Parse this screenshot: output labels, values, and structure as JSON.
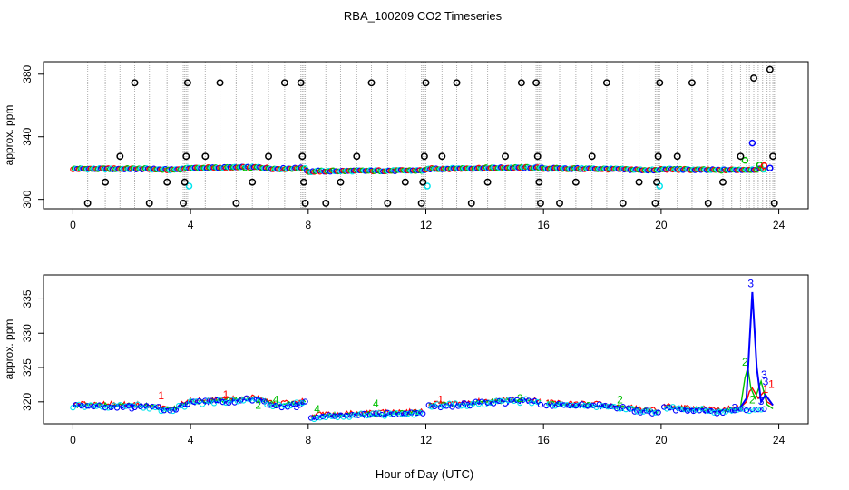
{
  "title": "RBA_100209  CO2 Timeseries",
  "xlabel": "Hour of Day (UTC)",
  "colors": {
    "outlier": "#000000",
    "ch1": "#ff0000",
    "ch2": "#00c000",
    "ch3": "#0000ff",
    "ch4": "#00e5ee",
    "vline": "#b0b0b0"
  },
  "chart_data": [
    {
      "type": "scatter",
      "ylabel": "approx. ppm",
      "xlim": [
        -1,
        25
      ],
      "ylim": [
        294,
        388
      ],
      "xticks": [
        0,
        4,
        8,
        12,
        16,
        20,
        24
      ],
      "yticks": [
        300,
        340,
        380
      ],
      "baseline": [
        [
          0,
          319.5
        ],
        [
          2.5,
          319.5
        ],
        [
          3.3,
          318.8
        ],
        [
          4,
          320
        ],
        [
          6.3,
          320.5
        ],
        [
          6.9,
          319.5
        ],
        [
          7.9,
          320
        ],
        [
          8.0,
          317.5
        ],
        [
          8.3,
          318
        ],
        [
          12,
          318.5
        ],
        [
          12.1,
          319.5
        ],
        [
          15.4,
          320.3
        ],
        [
          15.9,
          320
        ],
        [
          16.0,
          319.8
        ],
        [
          18,
          319.5
        ],
        [
          19.9,
          318.6
        ],
        [
          20.0,
          319.3
        ],
        [
          22,
          318.7
        ],
        [
          22.8,
          319
        ],
        [
          23.8,
          319.5
        ]
      ],
      "outliers": [
        [
          0.5,
          297.5
        ],
        [
          1.1,
          311
        ],
        [
          1.6,
          327.5
        ],
        [
          2.1,
          374.5
        ],
        [
          2.6,
          297.5
        ],
        [
          3.2,
          311
        ],
        [
          3.75,
          297.5
        ],
        [
          3.8,
          311
        ],
        [
          3.85,
          327.5
        ],
        [
          3.9,
          374.5
        ],
        [
          4.5,
          327.5
        ],
        [
          5.0,
          374.5
        ],
        [
          5.55,
          297.5
        ],
        [
          6.1,
          311
        ],
        [
          6.65,
          327.5
        ],
        [
          7.2,
          374.5
        ],
        [
          7.75,
          374.5
        ],
        [
          7.8,
          327.5
        ],
        [
          7.85,
          311
        ],
        [
          7.9,
          297.5
        ],
        [
          8.6,
          297.5
        ],
        [
          9.1,
          311
        ],
        [
          9.65,
          327.5
        ],
        [
          10.15,
          374.5
        ],
        [
          10.7,
          297.5
        ],
        [
          11.3,
          311
        ],
        [
          11.85,
          297.5
        ],
        [
          11.9,
          311
        ],
        [
          11.95,
          327.5
        ],
        [
          12.0,
          374.5
        ],
        [
          12.55,
          327.5
        ],
        [
          13.05,
          374.5
        ],
        [
          13.55,
          297.5
        ],
        [
          14.1,
          311
        ],
        [
          14.7,
          327.5
        ],
        [
          15.25,
          374.5
        ],
        [
          15.75,
          374.5
        ],
        [
          15.8,
          327.5
        ],
        [
          15.85,
          311
        ],
        [
          15.9,
          297.5
        ],
        [
          16.55,
          297.5
        ],
        [
          17.1,
          311
        ],
        [
          17.65,
          327.5
        ],
        [
          18.15,
          374.5
        ],
        [
          18.7,
          297.5
        ],
        [
          19.25,
          311
        ],
        [
          19.8,
          297.5
        ],
        [
          19.85,
          311
        ],
        [
          19.9,
          327.5
        ],
        [
          19.95,
          374.5
        ],
        [
          20.55,
          327.5
        ],
        [
          21.05,
          374.5
        ],
        [
          21.6,
          297.5
        ],
        [
          22.1,
          311
        ],
        [
          22.7,
          327.5
        ],
        [
          23.15,
          377.5
        ],
        [
          23.7,
          383
        ],
        [
          23.8,
          327.5
        ],
        [
          23.85,
          297.5
        ]
      ],
      "cyan_points": [
        [
          3.95,
          308.5
        ],
        [
          12.05,
          308.5
        ],
        [
          19.95,
          308.5
        ]
      ],
      "spike_points": [
        [
          22.85,
          325
        ],
        [
          23.1,
          336
        ],
        [
          23.35,
          322
        ],
        [
          23.5,
          321.5
        ],
        [
          23.7,
          320
        ]
      ]
    },
    {
      "type": "line",
      "ylabel": "approx. ppm",
      "xlim": [
        -1,
        25
      ],
      "ylim": [
        316.8,
        338.5
      ],
      "xticks": [
        0,
        4,
        8,
        12,
        16,
        20,
        24
      ],
      "yticks": [
        320,
        325,
        330,
        335
      ],
      "baseline": [
        [
          0,
          319.5
        ],
        [
          2.5,
          319.5
        ],
        [
          3.3,
          318.8
        ],
        [
          4,
          320
        ],
        [
          6.3,
          320.5
        ],
        [
          6.9,
          319.5
        ],
        [
          7.9,
          320
        ],
        [
          8.0,
          317.5
        ],
        [
          8.3,
          318
        ],
        [
          12,
          318.5
        ],
        [
          12.1,
          319.5
        ],
        [
          15.4,
          320.3
        ],
        [
          15.9,
          320
        ],
        [
          16.0,
          319.8
        ],
        [
          18,
          319.5
        ],
        [
          19.9,
          318.6
        ],
        [
          20.0,
          319.3
        ],
        [
          22,
          318.7
        ],
        [
          22.8,
          319
        ],
        [
          23.8,
          319.5
        ]
      ],
      "gaps": [
        [
          8.0,
          8.05
        ],
        [
          12.0,
          12.05
        ],
        [
          16.0,
          16.05
        ],
        [
          20.0,
          20.05
        ]
      ],
      "spike_series": [
        {
          "label": "1",
          "points": [
            [
              22.7,
              319.2
            ],
            [
              22.9,
              320
            ],
            [
              23.0,
              321.5
            ],
            [
              23.1,
              322
            ],
            [
              23.3,
              320.5
            ],
            [
              23.5,
              321.5
            ],
            [
              23.6,
              320
            ],
            [
              23.8,
              319.5
            ]
          ]
        },
        {
          "label": "2",
          "points": [
            [
              22.7,
              319.2
            ],
            [
              22.85,
              323.5
            ],
            [
              22.95,
              325
            ],
            [
              23.05,
              322
            ],
            [
              23.2,
              320.5
            ],
            [
              23.4,
              323
            ],
            [
              23.6,
              319.6
            ],
            [
              23.8,
              319
            ]
          ]
        },
        {
          "label": "3",
          "points": [
            [
              22.7,
              319.2
            ],
            [
              22.9,
              320.5
            ],
            [
              23.1,
              336
            ],
            [
              23.25,
              325
            ],
            [
              23.4,
              320
            ],
            [
              23.55,
              321
            ],
            [
              23.8,
              319.5
            ]
          ]
        }
      ],
      "annotations": [
        {
          "text": "3",
          "x": 23.05,
          "y": 336.7,
          "color": "#0000ff"
        },
        {
          "text": "2",
          "x": 22.85,
          "y": 325.3,
          "color": "#00c000"
        },
        {
          "text": "3",
          "x": 23.5,
          "y": 323.4,
          "color": "#0000ff"
        },
        {
          "text": "3",
          "x": 23.55,
          "y": 322.4,
          "color": "#0000ff"
        },
        {
          "text": "1",
          "x": 23.75,
          "y": 322.0,
          "color": "#ff0000"
        },
        {
          "text": "1",
          "x": 23.55,
          "y": 321.3,
          "color": "#ff0000"
        },
        {
          "text": "1",
          "x": 3.0,
          "y": 320.4,
          "color": "#ff0000"
        },
        {
          "text": "3",
          "x": 2.0,
          "y": 318.6,
          "color": "#0000ff"
        },
        {
          "text": "2",
          "x": 6.3,
          "y": 319.0,
          "color": "#00c000"
        },
        {
          "text": "4",
          "x": 6.9,
          "y": 319.8,
          "color": "#00c000"
        },
        {
          "text": "3",
          "x": 7.6,
          "y": 318.8,
          "color": "#0000ff"
        },
        {
          "text": "4",
          "x": 8.3,
          "y": 318.4,
          "color": "#00c000"
        },
        {
          "text": "1",
          "x": 5.2,
          "y": 320.5,
          "color": "#ff0000"
        },
        {
          "text": "2",
          "x": 15.2,
          "y": 320.0,
          "color": "#00c000"
        },
        {
          "text": "2",
          "x": 18.6,
          "y": 319.8,
          "color": "#00c000"
        },
        {
          "text": "3",
          "x": 22.5,
          "y": 318.6,
          "color": "#0000ff"
        },
        {
          "text": "2",
          "x": 23.1,
          "y": 319.8,
          "color": "#00c000"
        },
        {
          "text": "3",
          "x": 23.4,
          "y": 319.6,
          "color": "#0000ff"
        },
        {
          "text": "1",
          "x": 12.5,
          "y": 319.8,
          "color": "#ff0000"
        },
        {
          "text": "4",
          "x": 10.3,
          "y": 319.2,
          "color": "#00c000"
        }
      ]
    }
  ]
}
